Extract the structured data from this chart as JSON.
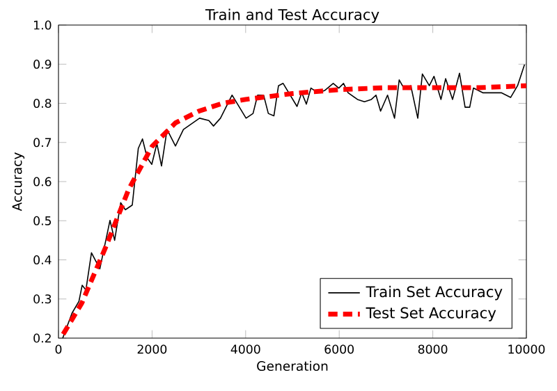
{
  "chart_data": {
    "type": "line",
    "title": "Train and Test Accuracy",
    "xlabel": "Generation",
    "ylabel": "Accuracy",
    "xlim": [
      0,
      10000
    ],
    "ylim": [
      0.2,
      1.0
    ],
    "xticks": [
      0,
      2000,
      4000,
      6000,
      8000,
      10000
    ],
    "yticks": [
      0.2,
      0.3,
      0.4,
      0.5,
      0.6,
      0.7,
      0.8,
      0.9,
      {
        "value": 1.0,
        "label": "1.0"
      }
    ],
    "grid": false,
    "legend": "bottom right",
    "marker": "none",
    "series": [
      {
        "name": "Train Set Accuracy",
        "color": "#000000",
        "line_style": "solid",
        "x": [
          90,
          290,
          437,
          506,
          586,
          705,
          884,
          1101,
          1200,
          1330,
          1429,
          1577,
          1706,
          1795,
          1895,
          1994,
          2103,
          2202,
          2321,
          2500,
          2670,
          3015,
          3214,
          3313,
          3462,
          3710,
          4009,
          4158,
          4256,
          4384,
          4485,
          4604,
          4702,
          4801,
          5098,
          5199,
          5298,
          5396,
          5545,
          5693,
          5872,
          5991,
          6092,
          6190,
          6390,
          6539,
          6687,
          6786,
          6884,
          7033,
          7182,
          7282,
          7381,
          7530,
          7679,
          7777,
          7926,
          8026,
          8175,
          8274,
          8423,
          8571,
          8690,
          8789,
          8869,
          9068,
          9464,
          9663,
          9812,
          9961
        ],
        "values": [
          0.2,
          0.264,
          0.294,
          0.335,
          0.323,
          0.418,
          0.377,
          0.501,
          0.45,
          0.546,
          0.528,
          0.54,
          0.685,
          0.709,
          0.661,
          0.644,
          0.697,
          0.64,
          0.733,
          0.691,
          0.733,
          0.762,
          0.756,
          0.742,
          0.762,
          0.821,
          0.762,
          0.774,
          0.821,
          0.821,
          0.774,
          0.768,
          0.845,
          0.851,
          0.792,
          0.827,
          0.798,
          0.839,
          0.827,
          0.833,
          0.851,
          0.839,
          0.851,
          0.827,
          0.81,
          0.804,
          0.81,
          0.821,
          0.78,
          0.821,
          0.762,
          0.86,
          0.839,
          0.845,
          0.762,
          0.875,
          0.845,
          0.869,
          0.81,
          0.863,
          0.81,
          0.877,
          0.79,
          0.79,
          0.839,
          0.827,
          0.827,
          0.815,
          0.845,
          0.899
        ]
      },
      {
        "name": "Test Set Accuracy",
        "color": "#ff0000",
        "line_style": "dashed",
        "x": [
          100,
          500,
          1000,
          1500,
          2000,
          2500,
          3000,
          3500,
          4000,
          5000,
          6000,
          7000,
          8000,
          9000,
          10000
        ],
        "values": [
          0.21,
          0.29,
          0.43,
          0.58,
          0.69,
          0.75,
          0.78,
          0.8,
          0.81,
          0.825,
          0.835,
          0.84,
          0.84,
          0.84,
          0.845
        ]
      }
    ]
  }
}
